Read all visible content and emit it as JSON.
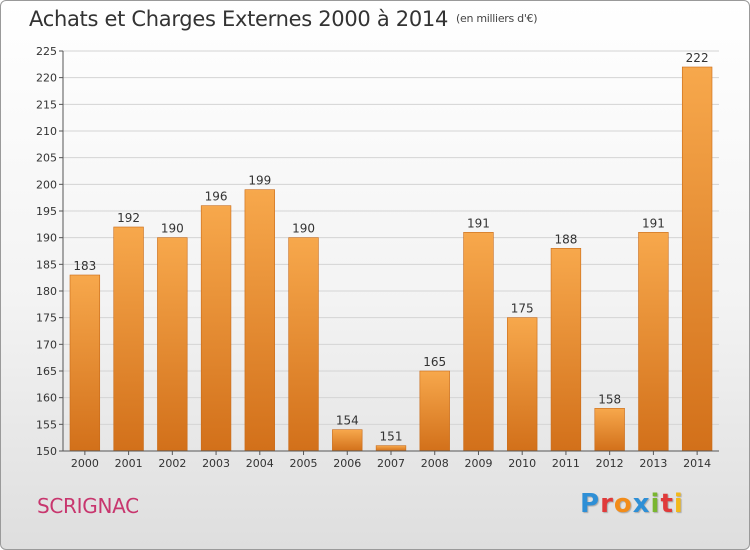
{
  "header": {
    "title": "Achats et Charges Externes 2000 à 2014",
    "unit_note": "(en milliers d'€)"
  },
  "footer": {
    "commune": "SCRIGNAC",
    "brand_letters": [
      "P",
      "r",
      "o",
      "x",
      "i",
      "t",
      "i"
    ],
    "brand_colors": [
      "#2e8fd6",
      "#e03a3a",
      "#f28c1a",
      "#2e8fd6",
      "#7ab630",
      "#e03a3a",
      "#f2b81a"
    ]
  },
  "colors": {
    "bar_light": "#f7a84c",
    "bar_dark": "#d2701a",
    "grid": "#d4d4d4",
    "axis": "#555555",
    "commune": "#c8366e"
  },
  "chart_data": {
    "type": "bar",
    "title": "Achats et Charges Externes 2000 à 2014",
    "subtitle": "(en milliers d'€)",
    "xlabel": "",
    "ylabel": "",
    "categories": [
      "2000",
      "2001",
      "2002",
      "2003",
      "2004",
      "2005",
      "2006",
      "2007",
      "2008",
      "2009",
      "2010",
      "2011",
      "2012",
      "2013",
      "2014"
    ],
    "values": [
      183,
      192,
      190,
      196,
      199,
      190,
      154,
      151,
      165,
      191,
      175,
      188,
      158,
      191,
      222
    ],
    "ylim": [
      150,
      225
    ],
    "yticks": [
      150,
      155,
      160,
      165,
      170,
      175,
      180,
      185,
      190,
      195,
      200,
      205,
      210,
      215,
      220,
      225
    ],
    "grid": true,
    "legend": "none"
  }
}
